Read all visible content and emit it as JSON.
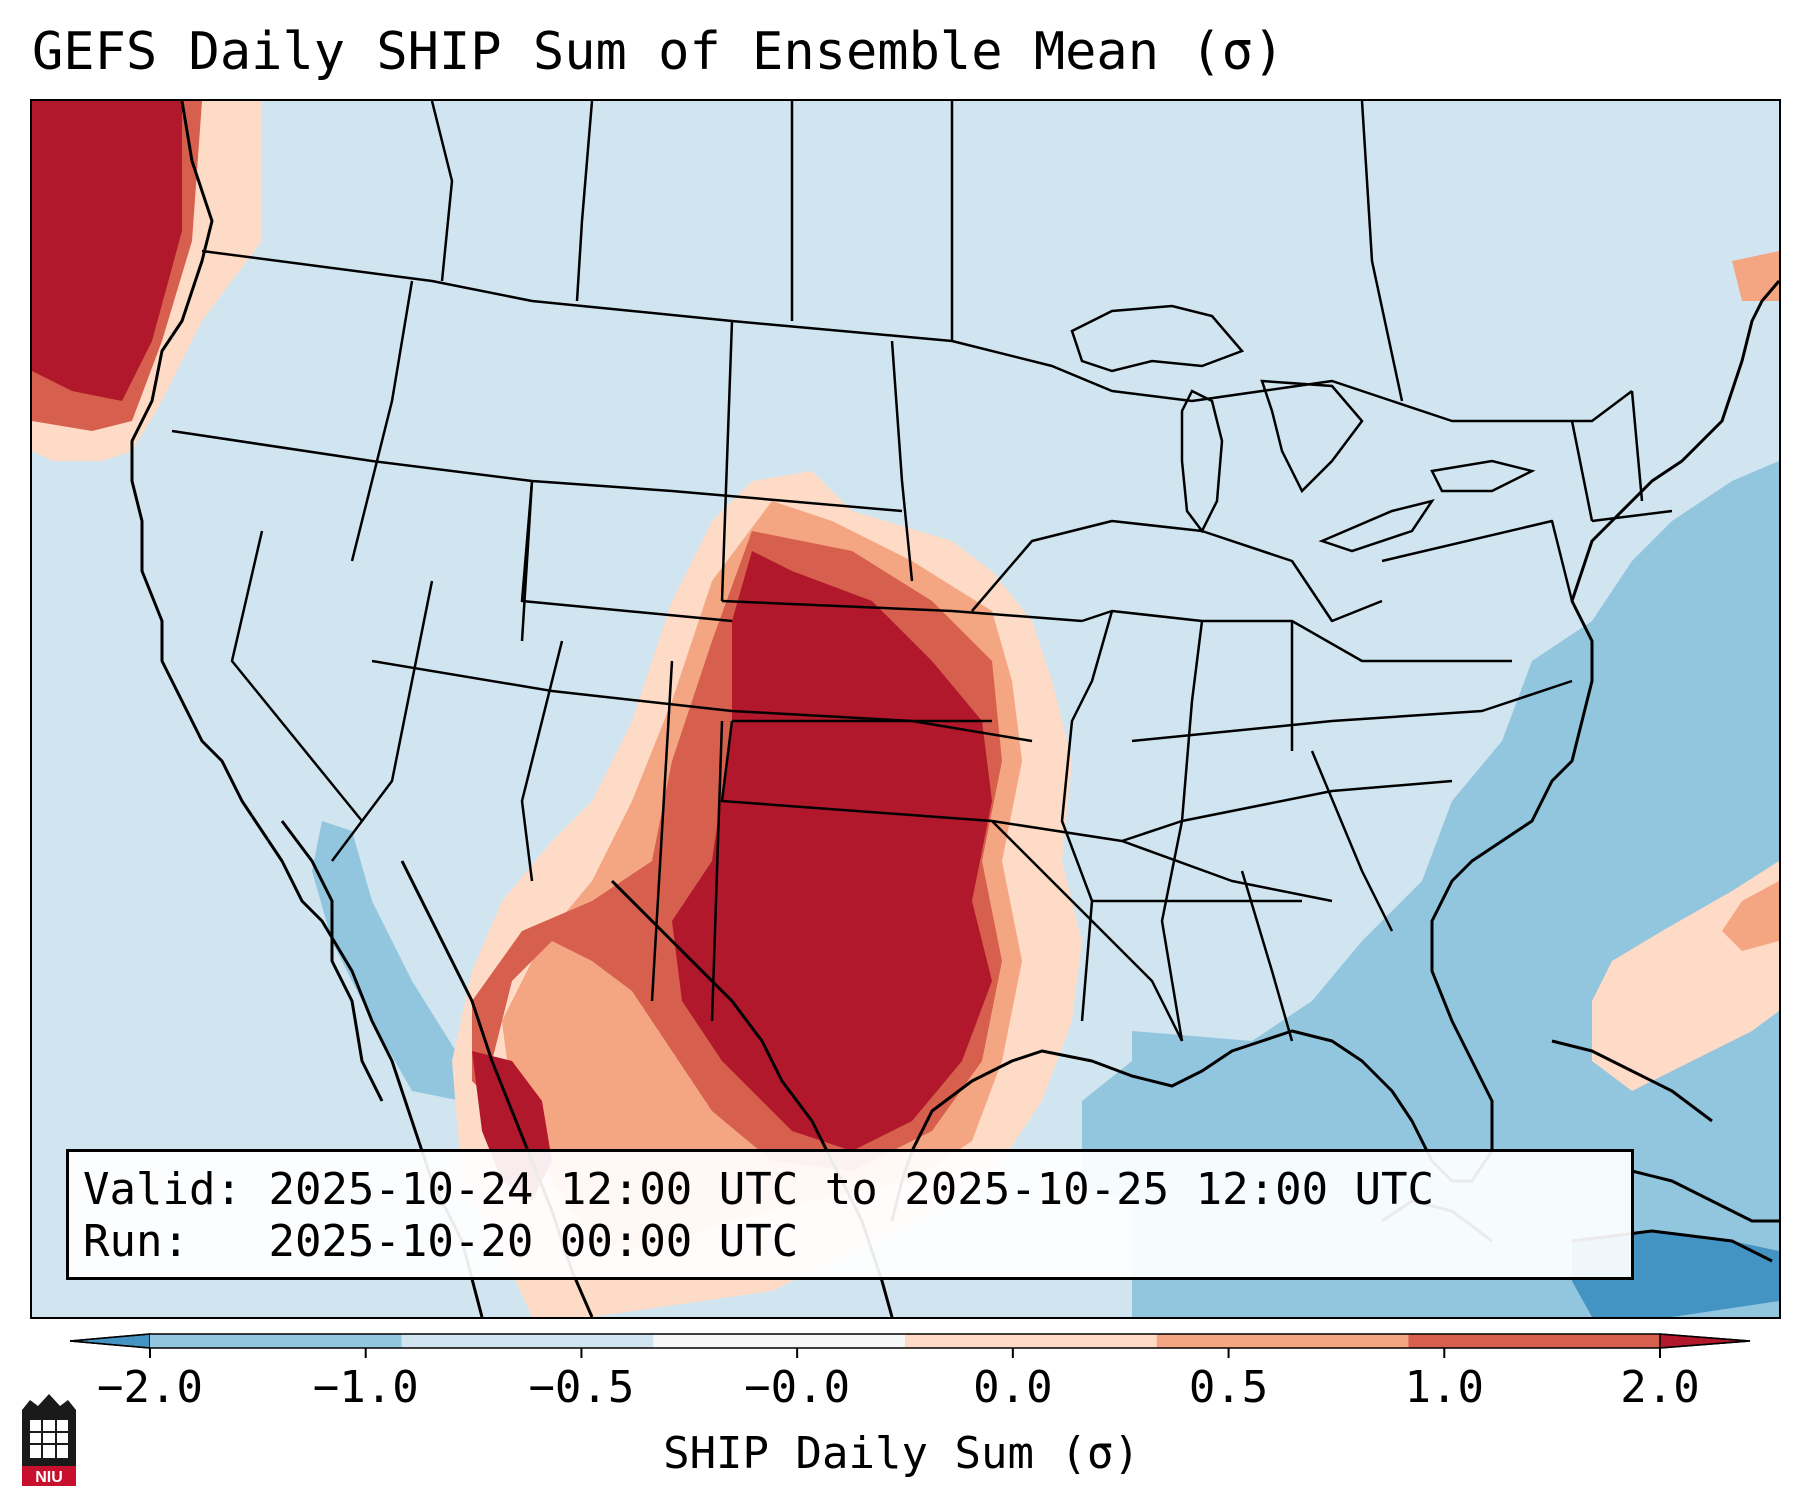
{
  "title": "GEFS Daily SHIP Sum of Ensemble Mean (σ)",
  "info": {
    "valid_label": "Valid:",
    "valid_value": "2025-10-24 12:00 UTC to 2025-10-25 12:00 UTC",
    "run_label": "Run:",
    "run_value": "2025-10-20 00:00 UTC"
  },
  "colorbar": {
    "label": "SHIP Daily Sum (σ)",
    "ticks": [
      "−2.0",
      "−1.0",
      "−0.5",
      "−0.0",
      "0.0",
      "0.5",
      "1.0",
      "2.0"
    ],
    "colors": [
      "#4393c3",
      "#92c5de",
      "#d1e5f0",
      "#f7f7f7",
      "#fddbc7",
      "#f4a582",
      "#d6604d",
      "#b2182b"
    ],
    "extend": "both"
  },
  "colors": {
    "ocean_background": "#d1e5f0",
    "state_lines": "#000000",
    "max_category": "#b2182b"
  },
  "logo": {
    "text": "NIU"
  }
}
